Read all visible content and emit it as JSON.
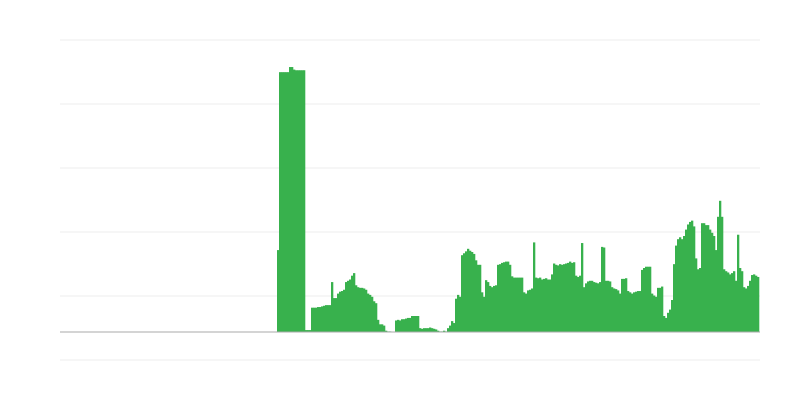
{
  "chart_data": {
    "type": "bar",
    "title": "",
    "xlabel": "",
    "ylabel": "",
    "grid": true,
    "ylim": [
      -0.4375,
      4.5625
    ],
    "grid_step": 1,
    "colors": {
      "bar": "#38b14d",
      "grid": "#ececec",
      "baseline": "#aaaaaa"
    },
    "values": [
      1.28,
      4.06,
      4.06,
      4.06,
      4.06,
      4.06,
      4.14,
      4.14,
      4.1,
      4.09,
      4.09,
      4.09,
      4.09,
      4.09,
      0.03,
      0.03,
      0.03,
      0.38,
      0.38,
      0.38,
      0.39,
      0.39,
      0.4,
      0.41,
      0.42,
      0.42,
      0.42,
      0.78,
      0.53,
      0.53,
      0.6,
      0.63,
      0.64,
      0.66,
      0.78,
      0.8,
      0.82,
      0.88,
      0.92,
      0.73,
      0.7,
      0.69,
      0.69,
      0.68,
      0.66,
      0.6,
      0.58,
      0.55,
      0.48,
      0.45,
      0.19,
      0.12,
      0.12,
      0.1,
      0.02,
      0.01,
      0.01,
      0,
      0,
      0.18,
      0.19,
      0.18,
      0.2,
      0.2,
      0.21,
      0.22,
      0.22,
      0.25,
      0.25,
      0.25,
      0.25,
      0.06,
      0.05,
      0.06,
      0.06,
      0.06,
      0.07,
      0.06,
      0.05,
      0.04,
      0.02,
      0.01,
      0.01,
      0.02,
      0.01,
      0.06,
      0.1,
      0.17,
      0.14,
      0.52,
      0.58,
      0.55,
      1.2,
      1.23,
      1.26,
      1.3,
      1.27,
      1.25,
      1.22,
      1.12,
      1.05,
      1.05,
      0.62,
      0.55,
      0.81,
      0.78,
      0.72,
      0.7,
      0.72,
      0.73,
      1.05,
      1.06,
      1.08,
      1.09,
      1.1,
      1.1,
      1.05,
      0.87,
      0.85,
      0.85,
      0.85,
      0.85,
      0.85,
      0.62,
      0.6,
      0.65,
      0.66,
      0.68,
      1.4,
      0.85,
      0.84,
      0.85,
      0.82,
      0.83,
      0.84,
      0.82,
      0.82,
      0.9,
      1.07,
      1.05,
      1.04,
      1.06,
      1.05,
      1.06,
      1.07,
      1.08,
      1.1,
      1.08,
      1.09,
      0.88,
      0.86,
      0.88,
      1.39,
      0.7,
      0.76,
      0.79,
      0.8,
      0.8,
      0.78,
      0.77,
      0.76,
      0.78,
      1.33,
      1.32,
      0.8,
      0.8,
      0.79,
      0.7,
      0.68,
      0.67,
      0.65,
      0.6,
      0.83,
      0.83,
      0.84,
      0.64,
      0.62,
      0.6,
      0.62,
      0.63,
      0.64,
      0.64,
      0.97,
      1.0,
      1.02,
      1.02,
      1.02,
      0.6,
      0.57,
      0.55,
      0.69,
      0.69,
      0.71,
      0.25,
      0.22,
      0.3,
      0.35,
      0.5,
      1.06,
      1.35,
      1.45,
      1.48,
      1.45,
      1.5,
      1.6,
      1.68,
      1.72,
      1.74,
      1.65,
      1.15,
      0.98,
      1.0,
      1.7,
      1.7,
      1.67,
      1.67,
      1.6,
      1.55,
      1.5,
      1.28,
      1.8,
      2.05,
      1.8,
      0.98,
      0.95,
      0.93,
      0.9,
      0.92,
      0.95,
      0.8,
      1.52,
      1.0,
      0.95,
      0.7,
      0.68,
      0.72,
      0.8,
      0.89,
      0.9,
      0.88,
      0.86
    ]
  }
}
